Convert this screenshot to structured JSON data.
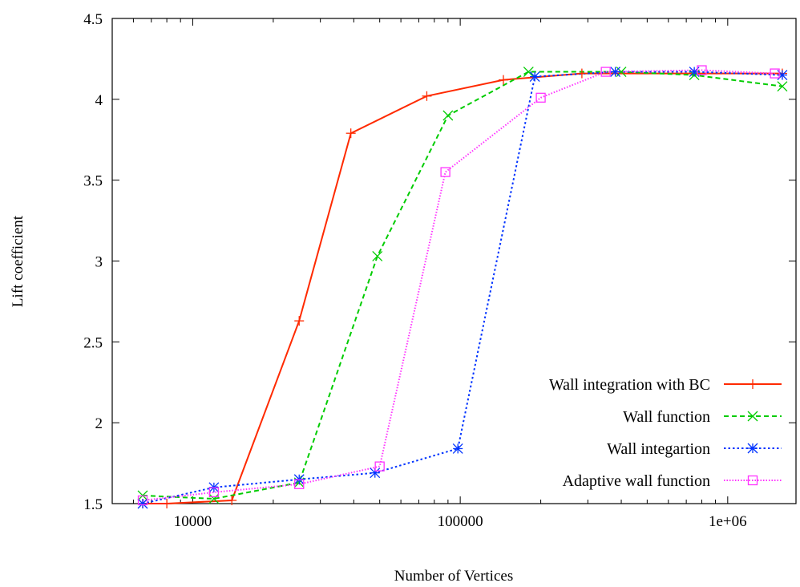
{
  "chart_data": {
    "type": "line",
    "title": "",
    "xlabel": "Number of Vertices",
    "ylabel": "Lift coefficient",
    "xscale": "log",
    "xlim": [
      5000,
      1800000
    ],
    "ylim": [
      1.5,
      4.5
    ],
    "xticks": [
      {
        "value": 10000,
        "label": "10000"
      },
      {
        "value": 100000,
        "label": "100000"
      },
      {
        "value": 1000000,
        "label": "1e+06"
      }
    ],
    "yticks": [
      {
        "value": 1.5,
        "label": "1.5"
      },
      {
        "value": 2,
        "label": "2"
      },
      {
        "value": 2.5,
        "label": "2.5"
      },
      {
        "value": 3,
        "label": "3"
      },
      {
        "value": 3.5,
        "label": "3.5"
      },
      {
        "value": 4,
        "label": "4"
      },
      {
        "value": 4.5,
        "label": "4.5"
      }
    ],
    "grid": false,
    "legend_position": "bottom-right",
    "series": [
      {
        "name": "Wall integration with BC",
        "color": "#ff2a00",
        "dash": "solid",
        "marker": "plus",
        "points": [
          {
            "x": 6500,
            "y": 1.5
          },
          {
            "x": 8000,
            "y": 1.5
          },
          {
            "x": 14000,
            "y": 1.52
          },
          {
            "x": 25000,
            "y": 2.63
          },
          {
            "x": 39000,
            "y": 3.79
          },
          {
            "x": 75000,
            "y": 4.02
          },
          {
            "x": 145000,
            "y": 4.12
          },
          {
            "x": 285000,
            "y": 4.16
          },
          {
            "x": 1600000,
            "y": 4.16
          }
        ]
      },
      {
        "name": "Wall function",
        "color": "#00cc00",
        "dash": "dashed",
        "marker": "x",
        "points": [
          {
            "x": 6500,
            "y": 1.55
          },
          {
            "x": 12000,
            "y": 1.53
          },
          {
            "x": 25000,
            "y": 1.63
          },
          {
            "x": 49000,
            "y": 3.03
          },
          {
            "x": 90000,
            "y": 3.9
          },
          {
            "x": 180000,
            "y": 4.17
          },
          {
            "x": 400000,
            "y": 4.17
          },
          {
            "x": 750000,
            "y": 4.15
          },
          {
            "x": 1600000,
            "y": 4.08
          }
        ]
      },
      {
        "name": "Wall integartion",
        "color": "#0033ff",
        "dash": "dotted",
        "marker": "star",
        "points": [
          {
            "x": 6500,
            "y": 1.5
          },
          {
            "x": 12000,
            "y": 1.6
          },
          {
            "x": 25000,
            "y": 1.65
          },
          {
            "x": 48000,
            "y": 1.69
          },
          {
            "x": 98000,
            "y": 1.84
          },
          {
            "x": 190000,
            "y": 4.14
          },
          {
            "x": 380000,
            "y": 4.17
          },
          {
            "x": 750000,
            "y": 4.17
          },
          {
            "x": 1600000,
            "y": 4.15
          }
        ]
      },
      {
        "name": "Adaptive wall function",
        "color": "#ff33ff",
        "dash": "dotted-fine",
        "marker": "square",
        "points": [
          {
            "x": 6500,
            "y": 1.52
          },
          {
            "x": 12000,
            "y": 1.57
          },
          {
            "x": 25000,
            "y": 1.62
          },
          {
            "x": 50000,
            "y": 1.73
          },
          {
            "x": 88000,
            "y": 3.55
          },
          {
            "x": 200000,
            "y": 4.01
          },
          {
            "x": 350000,
            "y": 4.17
          },
          {
            "x": 800000,
            "y": 4.18
          },
          {
            "x": 1500000,
            "y": 4.16
          }
        ]
      }
    ]
  }
}
